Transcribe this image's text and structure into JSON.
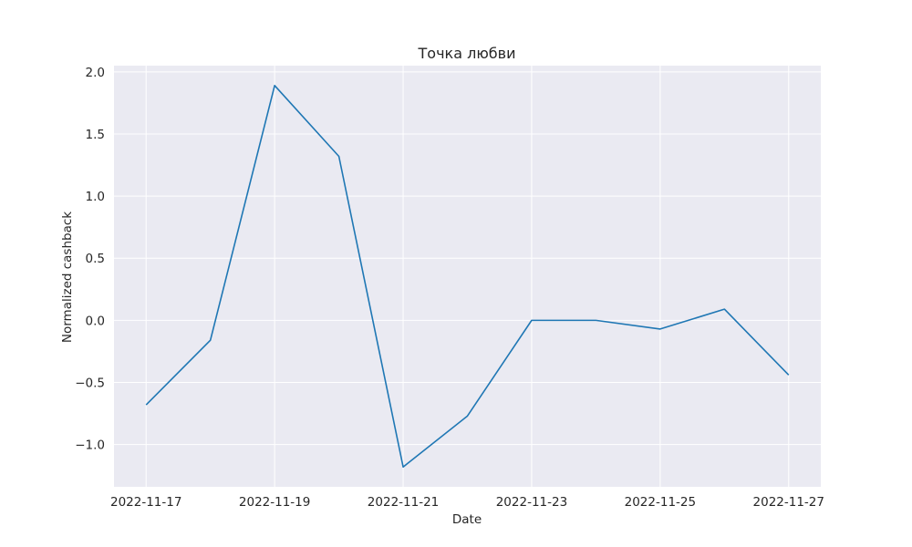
{
  "chart_data": {
    "type": "line",
    "title": "Точка любви",
    "xlabel": "Date",
    "ylabel": "Normalized cashback",
    "x": [
      "2022-11-17",
      "2022-11-18",
      "2022-11-19",
      "2022-11-20",
      "2022-11-21",
      "2022-11-22",
      "2022-11-23",
      "2022-11-24",
      "2022-11-25",
      "2022-11-26",
      "2022-11-27"
    ],
    "series": [
      {
        "values": [
          -0.68,
          -0.16,
          1.89,
          1.32,
          -1.18,
          -0.77,
          0.0,
          0.0,
          -0.07,
          0.09,
          -0.44
        ]
      }
    ],
    "xlim": [
      "2022-11-16T12:00",
      "2022-11-27T12:00"
    ],
    "ylim": [
      -1.34,
      2.05
    ],
    "x_ticks": [
      "2022-11-17",
      "2022-11-19",
      "2022-11-21",
      "2022-11-23",
      "2022-11-25",
      "2022-11-27"
    ],
    "y_ticks": [
      -1.0,
      -0.5,
      0.0,
      0.5,
      1.0,
      1.5,
      2.0
    ],
    "y_tick_labels": [
      "−1.0",
      "−0.5",
      "0.0",
      "0.5",
      "1.0",
      "1.5",
      "2.0"
    ],
    "grid": true,
    "colors": {
      "line": "#1f77b4",
      "background": "#eaeaf2",
      "grid": "#ffffff"
    }
  }
}
